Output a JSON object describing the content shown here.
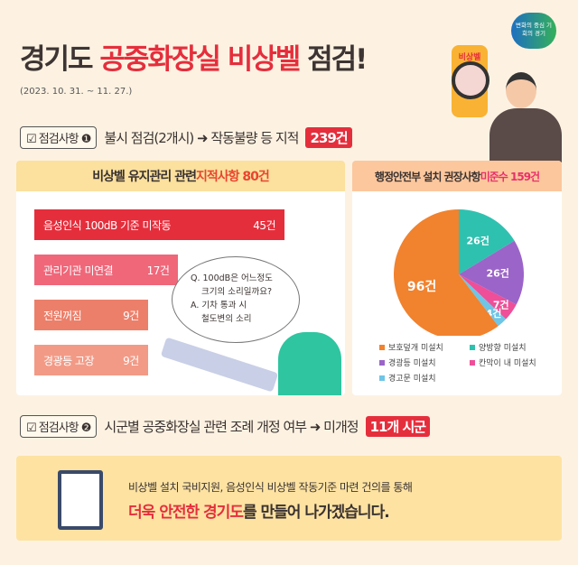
{
  "header": {
    "title_pre": "경기도 ",
    "title_red": "공중화장실 비상벨",
    "title_post": " 점검!",
    "date": "(2023. 10. 31. ~ 11. 27.)",
    "logo_text": "변화의 중심 기회의 경기",
    "sign_text": "비상벨"
  },
  "section1": {
    "tag": "☑ 점검사항 ❶",
    "text": "불시 점검(2개시) ➜ 작동불량 등 지적",
    "badge": "239건"
  },
  "section2": {
    "tag": "☑ 점검사항 ❷",
    "text": "시군별 공중화장실 관련 조례 개정 여부 ➜ 미개정",
    "badge": "11개 시군"
  },
  "bubble": {
    "q1": "Q. 100dB은 어느정도",
    "q2": "크기의 소리일까요?",
    "a1": "A. 기차 통과 시",
    "a2": "철도변의 소리"
  },
  "bottom": {
    "line1": "비상벨 설치 국비지원, 음성인식 비상벨 작동기준 마련 건의를 통해",
    "line2_red": "더욱 안전한 경기도",
    "line2_rest": "를 만들어 나가겠습니다."
  },
  "chart_data": [
    {
      "type": "bar",
      "title_pre": "비상벨 유지관리 관련 ",
      "title_red": "지적사항 80건",
      "categories": [
        "음성인식 100dB 기준 미작동",
        "관리기관 미연결",
        "전원꺼짐",
        "경광등 고장"
      ],
      "values": [
        45,
        17,
        9,
        9
      ],
      "labels": [
        "45건",
        "17건",
        "9건",
        "9건"
      ],
      "colors": [
        "#e52e3c",
        "#f0677a",
        "#ec7f6a",
        "#f29a86"
      ]
    },
    {
      "type": "pie",
      "title_pre": "행정안전부 설치 권장사항 ",
      "title_red": "미준수 159건",
      "categories": [
        "양방향 미설치",
        "경광등 미설치",
        "칸막이 내 미설치",
        "경고문 미설치",
        "보호덮개 미설치"
      ],
      "values": [
        26,
        26,
        7,
        4,
        96
      ],
      "labels": [
        "26건",
        "26건",
        "7건",
        "4건",
        "96건"
      ],
      "colors": [
        "#2fc1b0",
        "#9b64c8",
        "#ee4f98",
        "#6ec5e6",
        "#f1822e"
      ],
      "legend_order": [
        4,
        0,
        1,
        2,
        3
      ]
    }
  ]
}
